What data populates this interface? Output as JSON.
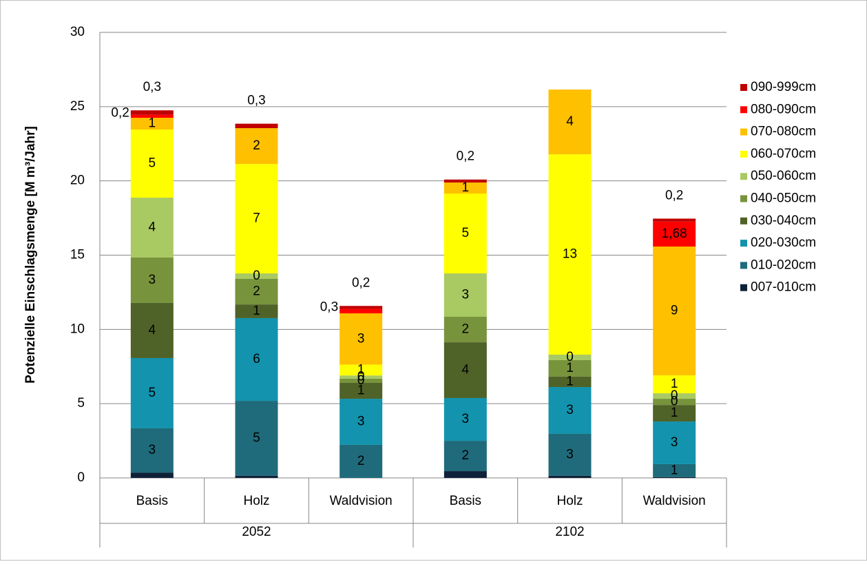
{
  "chart_data": {
    "type": "stacked_bar",
    "y_label": "Potenzielle Einschlagsmenge [M m³/Jahr]",
    "groups": [
      {
        "label": "2052",
        "categories": [
          "Basis",
          "Holz",
          "Waldvision"
        ]
      },
      {
        "label": "2102",
        "categories": [
          "Basis",
          "Holz",
          "Waldvision"
        ]
      }
    ],
    "ylim": [
      0,
      30
    ],
    "yticks": [
      0,
      5,
      10,
      15,
      20,
      25,
      30
    ],
    "grid": true,
    "legend": "right",
    "series": [
      {
        "name": "007-010cm",
        "color": "#0f2138",
        "values": [
          0.35,
          0.15,
          0,
          0.46,
          0.15,
          0.05
        ],
        "value_labels": [
          null,
          null,
          null,
          null,
          null,
          null
        ]
      },
      {
        "name": "010-020cm",
        "color": "#1f6b7b",
        "values": [
          2.99,
          5.04,
          2.23,
          2.04,
          2.82,
          0.88
        ],
        "value_labels": [
          "3",
          "5",
          "2",
          "2",
          "3",
          "1"
        ]
      },
      {
        "name": "020-030cm",
        "color": "#1393ad",
        "values": [
          4.73,
          5.57,
          3.1,
          2.88,
          3.15,
          2.87
        ],
        "value_labels": [
          "5",
          "6",
          "3",
          "3",
          "3",
          "3"
        ]
      },
      {
        "name": "030-040cm",
        "color": "#4f6228",
        "values": [
          3.71,
          0.92,
          1.07,
          3.75,
          0.7,
          1.11
        ],
        "value_labels": [
          "4",
          "1",
          "1",
          "4",
          "1",
          "1"
        ]
      },
      {
        "name": "040-050cm",
        "color": "#77933c",
        "values": [
          3.06,
          1.72,
          0.28,
          1.72,
          1.11,
          0.42
        ],
        "value_labels": [
          "3",
          "2",
          "0",
          "2",
          "1",
          "0"
        ]
      },
      {
        "name": "050-060cm",
        "color": "#a9c962",
        "values": [
          4.03,
          0.37,
          0.22,
          2.92,
          0.37,
          0.37
        ],
        "value_labels": [
          "4",
          "0",
          "0",
          "3",
          "0",
          "0"
        ]
      },
      {
        "name": "060-070cm",
        "color": "#ffff00",
        "values": [
          4.59,
          7.37,
          0.73,
          5.38,
          13.49,
          1.21
        ],
        "value_labels": [
          "5",
          "7",
          "1",
          "5",
          "13",
          "1"
        ]
      },
      {
        "name": "070-080cm",
        "color": "#ffc000",
        "values": [
          0.79,
          2.41,
          3.45,
          0.74,
          4.36,
          8.67
        ],
        "value_labels": [
          "1",
          "2",
          "3",
          "1",
          "4",
          "9"
        ]
      },
      {
        "name": "080-090cm",
        "color": "#ff0000",
        "values": [
          0.2,
          0,
          0.3,
          0,
          0,
          1.68
        ],
        "value_labels": [
          "0,2",
          null,
          "0,3",
          null,
          null,
          "1,68"
        ]
      },
      {
        "name": "090-999cm",
        "color": "#c00000",
        "values": [
          0.3,
          0.3,
          0.2,
          0.2,
          0,
          0.2
        ],
        "value_labels": [
          "0,3",
          "0,3",
          "0,2",
          "0,2",
          null,
          "0,2"
        ]
      }
    ]
  }
}
